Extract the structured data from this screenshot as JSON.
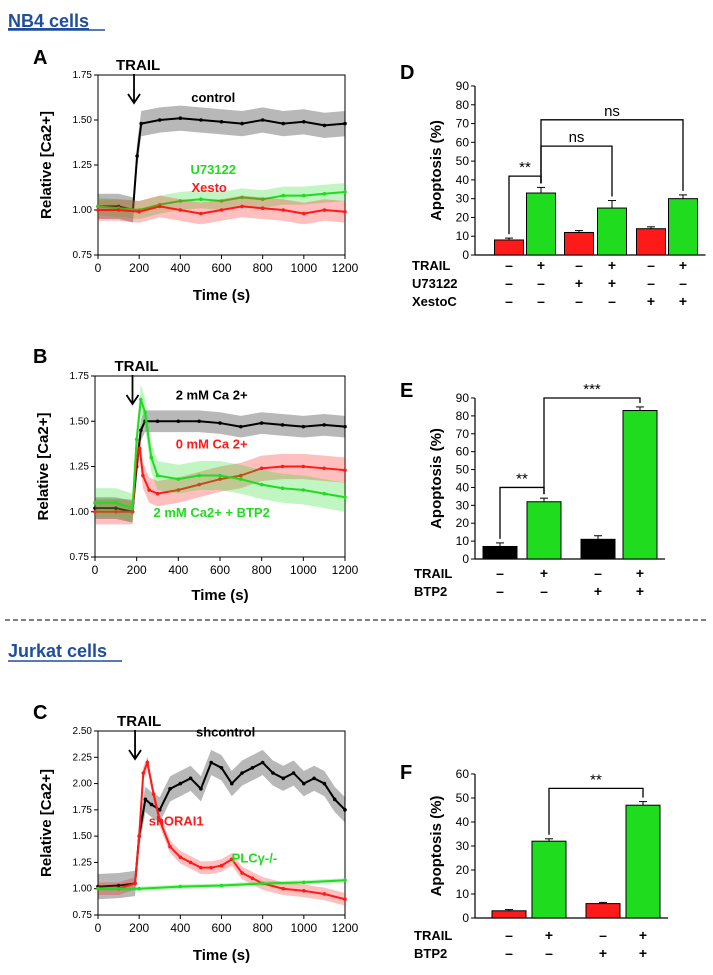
{
  "headers": {
    "nb4": "NB4 cells",
    "jurkat": "Jurkat cells"
  },
  "colors": {
    "black": "#000000",
    "red": "#ff1a1a",
    "green": "#1fdc1f",
    "header": "#1f4e9c"
  },
  "chart_data": [
    {
      "id": "A",
      "type": "line",
      "panel_label": "A",
      "xlabel": "Time (s)",
      "ylabel": "Relative [Ca2+]",
      "xlim": [
        0,
        1200
      ],
      "ylim": [
        0.75,
        1.75
      ],
      "xticks": [
        0,
        200,
        400,
        600,
        800,
        1000,
        1200
      ],
      "yticks": [
        0.75,
        1.0,
        1.25,
        1.5,
        1.75
      ],
      "ytick_labels": [
        "0.75",
        "1.00",
        "1.25",
        "1.50",
        "1.75"
      ],
      "annotation": {
        "text": "TRAIL",
        "x": 175
      },
      "series": [
        {
          "name": "control",
          "color": "#000000",
          "label_at": [
            560,
            1.6
          ],
          "x": [
            0,
            100,
            170,
            190,
            210,
            300,
            400,
            500,
            600,
            700,
            800,
            900,
            1000,
            1100,
            1200
          ],
          "y": [
            1.02,
            1.02,
            1.0,
            1.3,
            1.48,
            1.5,
            1.51,
            1.5,
            1.49,
            1.48,
            1.5,
            1.48,
            1.49,
            1.47,
            1.48
          ],
          "err": 0.07
        },
        {
          "name": "U73122",
          "color": "#1fdc1f",
          "label_at": [
            560,
            1.2
          ],
          "x": [
            0,
            100,
            200,
            300,
            400,
            500,
            600,
            700,
            800,
            900,
            1000,
            1100,
            1200
          ],
          "y": [
            1.02,
            1.01,
            1.0,
            1.03,
            1.05,
            1.06,
            1.05,
            1.07,
            1.06,
            1.08,
            1.08,
            1.09,
            1.1
          ],
          "err": 0.05
        },
        {
          "name": "Xesto",
          "color": "#ff1a1a",
          "label_at": [
            540,
            1.1
          ],
          "x": [
            0,
            100,
            200,
            300,
            400,
            500,
            600,
            700,
            800,
            900,
            1000,
            1100,
            1200
          ],
          "y": [
            1.0,
            1.0,
            0.99,
            1.02,
            1.0,
            0.98,
            1.0,
            1.02,
            1.01,
            1.0,
            0.98,
            1.0,
            0.99
          ],
          "err": 0.06
        }
      ]
    },
    {
      "id": "B",
      "type": "line",
      "panel_label": "B",
      "xlabel": "Time (s)",
      "ylabel": "Relative [Ca2+]",
      "xlim": [
        0,
        1200
      ],
      "ylim": [
        0.75,
        1.75
      ],
      "xticks": [
        0,
        200,
        400,
        600,
        800,
        1000,
        1200
      ],
      "yticks": [
        0.75,
        1.0,
        1.25,
        1.5,
        1.75
      ],
      "ytick_labels": [
        "0.75",
        "1.00",
        "1.25",
        "1.50",
        "1.75"
      ],
      "annotation": {
        "text": "TRAIL",
        "x": 180
      },
      "series": [
        {
          "name": "2 mM Ca 2+",
          "color": "#000000",
          "label_at": [
            560,
            1.62
          ],
          "x": [
            0,
            100,
            180,
            200,
            220,
            240,
            300,
            400,
            500,
            600,
            700,
            800,
            900,
            1000,
            1100,
            1200
          ],
          "y": [
            1.02,
            1.02,
            1.0,
            1.25,
            1.45,
            1.5,
            1.5,
            1.5,
            1.5,
            1.49,
            1.47,
            1.49,
            1.48,
            1.47,
            1.48,
            1.47
          ],
          "err": 0.06
        },
        {
          "name": "0 mM Ca 2+",
          "color": "#ff1a1a",
          "label_at": [
            560,
            1.35
          ],
          "x": [
            0,
            100,
            180,
            200,
            215,
            230,
            260,
            300,
            400,
            500,
            600,
            700,
            800,
            900,
            1000,
            1100,
            1200
          ],
          "y": [
            1.0,
            1.0,
            1.0,
            1.3,
            1.35,
            1.2,
            1.12,
            1.1,
            1.12,
            1.15,
            1.18,
            1.2,
            1.24,
            1.25,
            1.25,
            1.24,
            1.23
          ],
          "err": 0.07
        },
        {
          "name": "2 mM Ca2+ + BTP2",
          "color": "#1fdc1f",
          "label_at": [
            560,
            0.97
          ],
          "x": [
            0,
            100,
            180,
            200,
            220,
            240,
            270,
            300,
            400,
            500,
            600,
            700,
            800,
            900,
            1000,
            1100,
            1200
          ],
          "y": [
            1.05,
            1.05,
            1.02,
            1.4,
            1.62,
            1.55,
            1.3,
            1.2,
            1.18,
            1.2,
            1.2,
            1.18,
            1.15,
            1.13,
            1.12,
            1.1,
            1.08
          ],
          "err": 0.08
        }
      ]
    },
    {
      "id": "C",
      "type": "line",
      "panel_label": "C",
      "xlabel": "Time (s)",
      "ylabel": "Relative [Ca2+]",
      "xlim": [
        0,
        1200
      ],
      "ylim": [
        0.75,
        2.5
      ],
      "xticks": [
        0,
        200,
        400,
        600,
        800,
        1000,
        1200
      ],
      "yticks": [
        0.75,
        1.0,
        1.25,
        1.5,
        1.75,
        2.0,
        2.25,
        2.5
      ],
      "ytick_labels": [
        "0.75",
        "1.00",
        "1.25",
        "1.50",
        "1.75",
        "2.00",
        "2.25",
        "2.50"
      ],
      "annotation": {
        "text": "TRAIL",
        "x": 180
      },
      "series": [
        {
          "name": "shcontrol",
          "color": "#000000",
          "label_at": [
            620,
            2.45
          ],
          "x": [
            0,
            100,
            180,
            200,
            230,
            260,
            300,
            350,
            400,
            450,
            500,
            550,
            600,
            650,
            700,
            750,
            800,
            850,
            900,
            950,
            1000,
            1050,
            1100,
            1150,
            1200
          ],
          "y": [
            1.02,
            1.03,
            1.05,
            1.5,
            1.85,
            1.8,
            1.75,
            1.95,
            2.0,
            2.05,
            1.95,
            2.2,
            2.15,
            2.0,
            2.1,
            2.15,
            2.2,
            2.1,
            2.05,
            2.1,
            2.0,
            2.05,
            2.0,
            1.85,
            1.75
          ],
          "err": 0.12
        },
        {
          "name": "shORAI1",
          "color": "#ff1a1a",
          "label_at": [
            380,
            1.6
          ],
          "x": [
            0,
            100,
            180,
            200,
            220,
            240,
            270,
            300,
            350,
            400,
            450,
            500,
            550,
            600,
            650,
            700,
            750,
            800,
            900,
            1000,
            1100,
            1200
          ],
          "y": [
            1.0,
            1.0,
            1.05,
            1.5,
            2.1,
            2.2,
            1.9,
            1.65,
            1.4,
            1.3,
            1.25,
            1.2,
            1.2,
            1.22,
            1.28,
            1.15,
            1.1,
            1.05,
            1.0,
            0.98,
            0.95,
            0.9
          ],
          "err": 0.06
        },
        {
          "name": "PLCγ-/-",
          "color": "#1fdc1f",
          "label_at": [
            760,
            1.25
          ],
          "x": [
            0,
            200,
            400,
            600,
            800,
            1000,
            1200
          ],
          "y": [
            1.0,
            1.0,
            1.02,
            1.03,
            1.05,
            1.06,
            1.08
          ],
          "err": 0.02
        }
      ]
    },
    {
      "id": "D",
      "type": "bar",
      "panel_label": "D",
      "ylabel": "Apoptosis (%)",
      "ylim": [
        0,
        90
      ],
      "yticks": [
        0,
        10,
        20,
        30,
        40,
        50,
        60,
        70,
        80,
        90
      ],
      "values": [
        8,
        33,
        12,
        25,
        14,
        30
      ],
      "errors": [
        1,
        3,
        1,
        4,
        1,
        2
      ],
      "bar_colors": [
        "#ff1a1a",
        "#1fdc1f",
        "#ff1a1a",
        "#1fdc1f",
        "#ff1a1a",
        "#1fdc1f"
      ],
      "conditions": [
        {
          "name": "TRAIL",
          "signs": [
            "–",
            "+",
            "–",
            "+",
            "–",
            "+"
          ]
        },
        {
          "name": "U73122",
          "signs": [
            "–",
            "–",
            "+",
            "+",
            "–",
            "–"
          ]
        },
        {
          "name": "XestoC",
          "signs": [
            "–",
            "–",
            "–",
            "–",
            "+",
            "+"
          ]
        }
      ],
      "significance": [
        {
          "from": 0,
          "to": 1,
          "label": "**",
          "y": 42
        },
        {
          "from": 1,
          "to": 3,
          "label": "ns",
          "y": 58
        },
        {
          "from": 1,
          "to": 5,
          "label": "ns",
          "y": 72
        }
      ]
    },
    {
      "id": "E",
      "type": "bar",
      "panel_label": "E",
      "ylabel": "Apoptosis (%)",
      "ylim": [
        0,
        90
      ],
      "yticks": [
        0,
        10,
        20,
        30,
        40,
        50,
        60,
        70,
        80,
        90
      ],
      "values": [
        7,
        32,
        11,
        83
      ],
      "errors": [
        2,
        2,
        2,
        2
      ],
      "bar_colors": [
        "#000000",
        "#1fdc1f",
        "#000000",
        "#1fdc1f"
      ],
      "conditions": [
        {
          "name": "TRAIL",
          "signs": [
            "–",
            "+",
            "–",
            "+"
          ]
        },
        {
          "name": "BTP2",
          "signs": [
            "–",
            "–",
            "+",
            "+"
          ]
        }
      ],
      "significance": [
        {
          "from": 0,
          "to": 1,
          "label": "**",
          "y": 40
        },
        {
          "from": 1,
          "to": 3,
          "label": "***",
          "y": 90
        }
      ]
    },
    {
      "id": "F",
      "type": "bar",
      "panel_label": "F",
      "ylabel": "Apoptosis (%)",
      "ylim": [
        0,
        60
      ],
      "yticks": [
        0,
        10,
        20,
        30,
        40,
        50,
        60
      ],
      "values": [
        3,
        32,
        6,
        47
      ],
      "errors": [
        0.5,
        1,
        0.5,
        1.5
      ],
      "bar_colors": [
        "#ff1a1a",
        "#1fdc1f",
        "#ff1a1a",
        "#1fdc1f"
      ],
      "conditions": [
        {
          "name": "TRAIL",
          "signs": [
            "–",
            "+",
            "–",
            "+"
          ]
        },
        {
          "name": "BTP2",
          "signs": [
            "–",
            "–",
            "+",
            "+"
          ]
        }
      ],
      "significance": [
        {
          "from": 1,
          "to": 3,
          "label": "**",
          "y": 54
        }
      ]
    }
  ]
}
